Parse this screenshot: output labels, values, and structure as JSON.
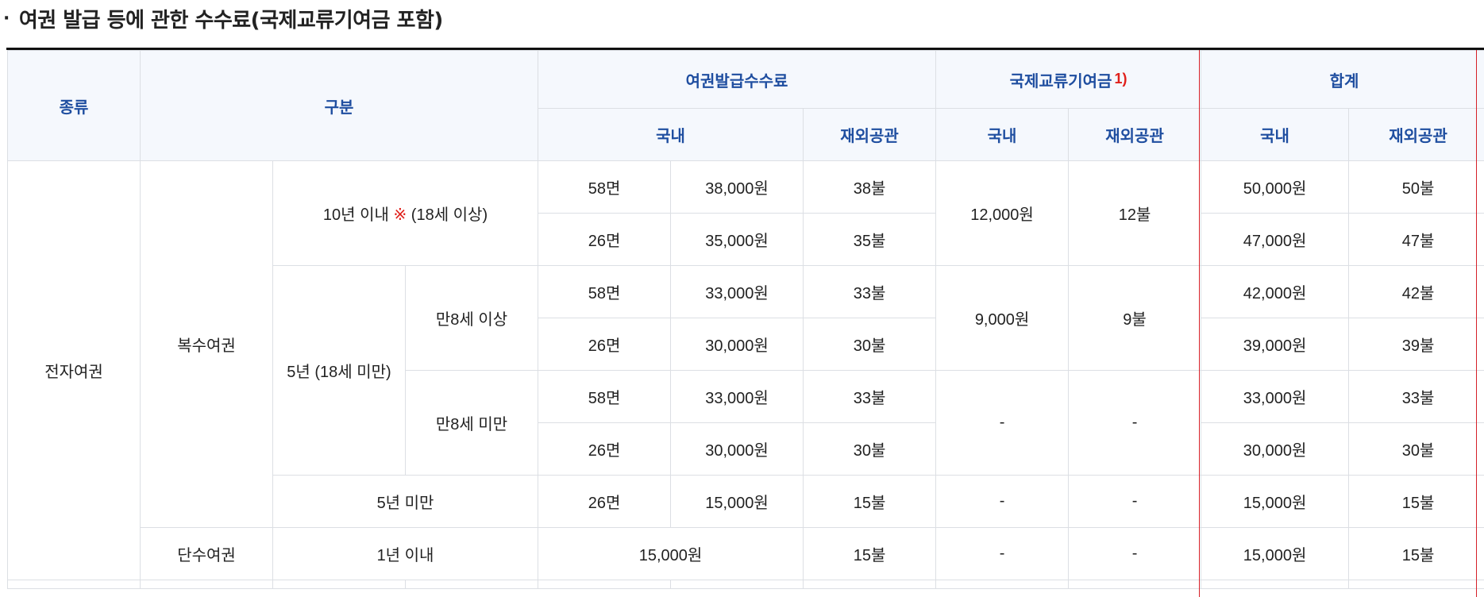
{
  "section": {
    "bullet": "·",
    "title": "여권 발급 등에 관한 수수료(국제교류기여금 포함)"
  },
  "headers": {
    "type": "종류",
    "category": "구분",
    "issuance_fee": "여권발급수수료",
    "contribution": "국제교류기여금",
    "contribution_note": "1)",
    "total": "합계",
    "domestic": "국내",
    "overseas": "재외공관"
  },
  "rows": {
    "electronic": "전자여권",
    "multiple": "복수여권",
    "single": "단수여권",
    "ten_year_prefix": "10년 이내",
    "ten_year_mark": "※",
    "ten_year_suffix": "(18세 이상)",
    "five_year": "5년 (18세 미만)",
    "age8_over": "만8세 이상",
    "age8_under": "만8세 미만",
    "under_five": "5년 미만",
    "one_year": "1년 이내",
    "p58": "58면",
    "p26": "26면",
    "r1": {
      "fee": "38,000원",
      "fee_o": "38불",
      "tot": "50,000원",
      "tot_o": "50불"
    },
    "r2": {
      "fee": "35,000원",
      "fee_o": "35불",
      "tot": "47,000원",
      "tot_o": "47불"
    },
    "r3": {
      "fee": "33,000원",
      "fee_o": "33불",
      "tot": "42,000원",
      "tot_o": "42불"
    },
    "r4": {
      "fee": "30,000원",
      "fee_o": "30불",
      "tot": "39,000원",
      "tot_o": "39불"
    },
    "r5": {
      "fee": "33,000원",
      "fee_o": "33불",
      "tot": "33,000원",
      "tot_o": "33불"
    },
    "r6": {
      "fee": "30,000원",
      "fee_o": "30불",
      "tot": "30,000원",
      "tot_o": "30불"
    },
    "r7": {
      "fee": "15,000원",
      "fee_o": "15불",
      "contrib": "-",
      "contrib_o": "-",
      "tot": "15,000원",
      "tot_o": "15불"
    },
    "r8": {
      "fee": "15,000원",
      "fee_o": "15불",
      "contrib": "-",
      "contrib_o": "-",
      "tot": "15,000원",
      "tot_o": "15불"
    },
    "contrib_ten": {
      "domestic": "12,000원",
      "overseas": "12불"
    },
    "contrib_five_over8": {
      "domestic": "9,000원",
      "overseas": "9불"
    },
    "contrib_five_under8": {
      "domestic": "-",
      "overseas": "-"
    }
  }
}
